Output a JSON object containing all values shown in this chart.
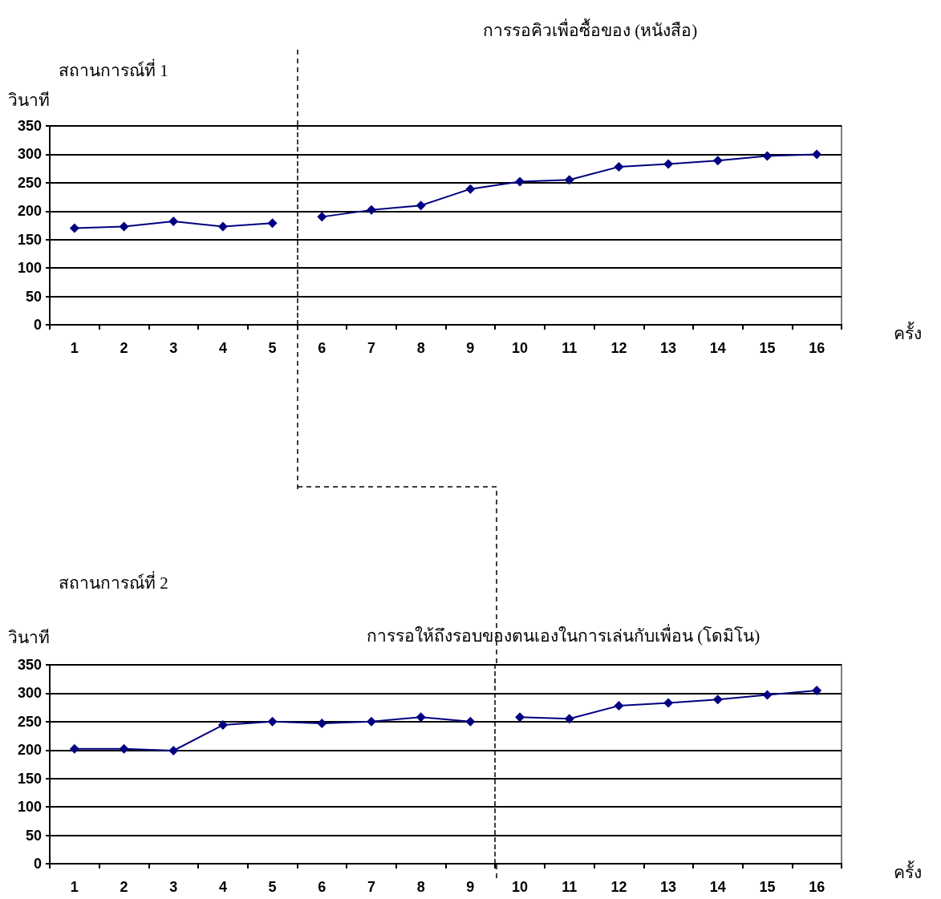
{
  "chart_data": [
    {
      "type": "line",
      "title": "การรอคิวเพื่อซื้อของ (หนังสือ)",
      "subtitle": "สถานการณ์ที่ 1",
      "ylabel": "วินาที",
      "xlabel": "ครั้ง",
      "series": [
        {
          "color": "#000080",
          "x": [
            1,
            2,
            3,
            4,
            5
          ],
          "values": [
            170,
            173,
            182,
            173,
            179
          ]
        },
        {
          "color": "#000080",
          "x": [
            6,
            7,
            8,
            9,
            10,
            11,
            12,
            13,
            14,
            15,
            16
          ],
          "values": [
            190,
            202,
            210,
            239,
            252,
            255,
            278,
            283,
            289,
            297,
            300
          ]
        }
      ],
      "xlim": [
        0.5,
        16.5
      ],
      "xticks": [
        1,
        2,
        3,
        4,
        5,
        6,
        7,
        8,
        9,
        10,
        11,
        12,
        13,
        14,
        15,
        16,
        {
          "value": 0.5,
          "label": null
        },
        {
          "value": 1.5,
          "label": null
        },
        {
          "value": 2.5,
          "label": null
        },
        {
          "value": 3.5,
          "label": null
        },
        {
          "value": 4.5,
          "label": null
        },
        {
          "value": 5.5,
          "label": null
        },
        {
          "value": 6.5,
          "label": null
        },
        {
          "value": 7.5,
          "label": null
        },
        {
          "value": 8.5,
          "label": null
        },
        {
          "value": 9.5,
          "label": null
        },
        {
          "value": 10.5,
          "label": null
        },
        {
          "value": 11.5,
          "label": null
        },
        {
          "value": 12.5,
          "label": null
        },
        {
          "value": 13.5,
          "label": null
        },
        {
          "value": 14.5,
          "label": null
        },
        {
          "value": 15.5,
          "label": null
        },
        {
          "value": 16.5,
          "label": null
        }
      ],
      "ylim": [
        0,
        350
      ],
      "yticks": [
        0,
        50,
        100,
        150,
        200,
        250,
        300,
        350
      ],
      "ref_lines": [
        {
          "axis": "x",
          "value": 5.5,
          "color": "#000000",
          "line_style": "dashed"
        }
      ],
      "grid": "y",
      "marker": "diamond",
      "line_style": "solid"
    },
    {
      "type": "line",
      "title": "การรอให้ถึงรอบของตนเองในการเล่นกับเพื่อน (โดมิโน)",
      "subtitle": "สถานการณ์ที่ 2",
      "ylabel": "วินาที",
      "xlabel": "ครั้ง",
      "series": [
        {
          "color": "#000080",
          "x": [
            1,
            2,
            3,
            4,
            5,
            6,
            7,
            8,
            9
          ],
          "values": [
            202,
            202,
            199,
            244,
            250,
            247,
            250,
            258,
            250
          ]
        },
        {
          "color": "#000080",
          "x": [
            10,
            11,
            12,
            13,
            14,
            15,
            16
          ],
          "values": [
            258,
            255,
            278,
            283,
            289,
            297,
            305
          ]
        }
      ],
      "xlim": [
        0.5,
        16.5
      ],
      "xticks": [
        1,
        2,
        3,
        4,
        5,
        6,
        7,
        8,
        9,
        10,
        11,
        12,
        13,
        14,
        15,
        16,
        {
          "value": 0.5,
          "label": null
        },
        {
          "value": 1.5,
          "label": null
        },
        {
          "value": 2.5,
          "label": null
        },
        {
          "value": 3.5,
          "label": null
        },
        {
          "value": 4.5,
          "label": null
        },
        {
          "value": 5.5,
          "label": null
        },
        {
          "value": 6.5,
          "label": null
        },
        {
          "value": 7.5,
          "label": null
        },
        {
          "value": 8.5,
          "label": null
        },
        {
          "value": 9.5,
          "label": null
        },
        {
          "value": 10.5,
          "label": null
        },
        {
          "value": 11.5,
          "label": null
        },
        {
          "value": 12.5,
          "label": null
        },
        {
          "value": 13.5,
          "label": null
        },
        {
          "value": 14.5,
          "label": null
        },
        {
          "value": 15.5,
          "label": null
        },
        {
          "value": 16.5,
          "label": null
        }
      ],
      "ylim": [
        0,
        350
      ],
      "yticks": [
        0,
        50,
        100,
        150,
        200,
        250,
        300,
        350
      ],
      "ref_lines": [
        {
          "axis": "x",
          "value": 9.5,
          "color": "#000000",
          "line_style": "dashed"
        }
      ],
      "grid": "y",
      "marker": "diamond",
      "line_style": "solid"
    }
  ]
}
